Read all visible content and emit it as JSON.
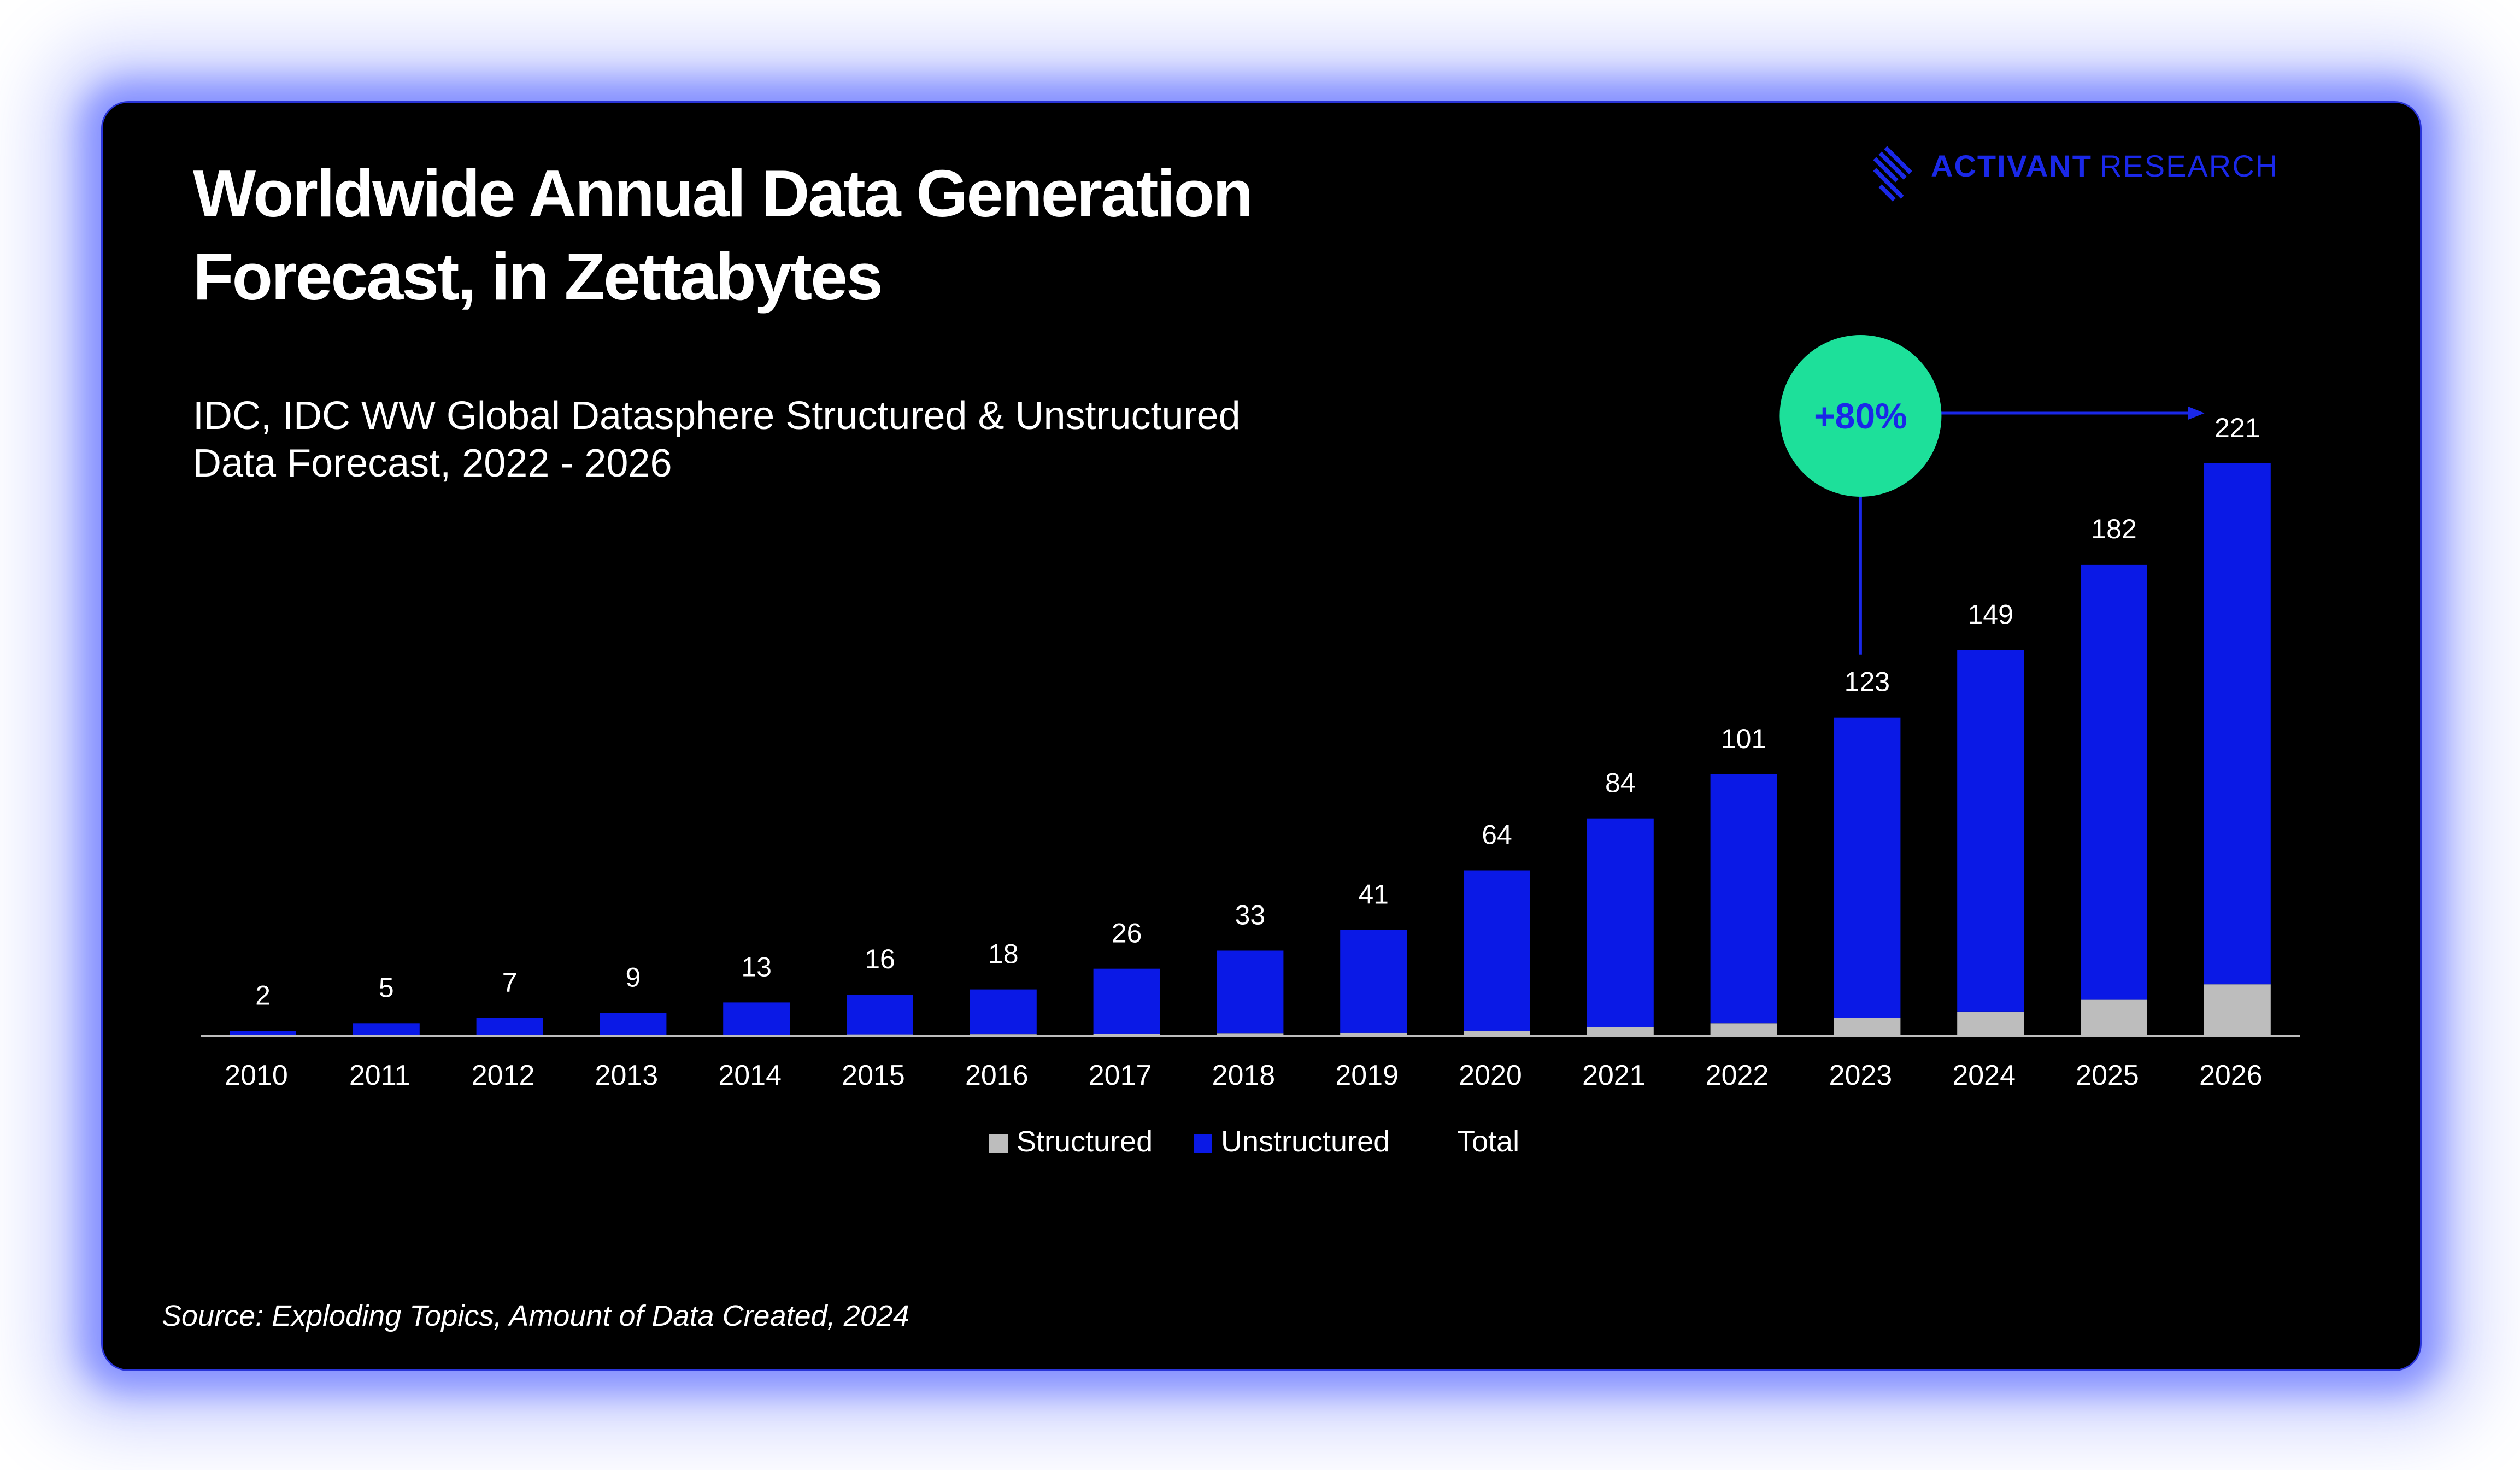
{
  "brand": {
    "name_bold": "ACTIVANT",
    "name_light": "RESEARCH",
    "logo_icon": "diagonal-stripes-icon"
  },
  "chart_data": {
    "type": "bar",
    "stacked": true,
    "title_lines": [
      "Worldwide Annual Data Generation",
      "Forecast, in Zettabytes"
    ],
    "subtitle_lines": [
      "IDC, IDC WW Global Datasphere Structured & Unstructured",
      "Data Forecast, 2022 - 2026"
    ],
    "categories": [
      "2010",
      "2011",
      "2012",
      "2013",
      "2014",
      "2015",
      "2016",
      "2017",
      "2018",
      "2019",
      "2020",
      "2021",
      "2022",
      "2023",
      "2024",
      "2025",
      "2026"
    ],
    "series": [
      {
        "name": "Structured",
        "color": "#bdbdbd",
        "values": [
          0.1,
          0.2,
          0.3,
          0.3,
          0.4,
          0.5,
          0.6,
          0.8,
          1.0,
          1.3,
          2.0,
          3.4,
          5.0,
          7.0,
          9.5,
          14.0,
          20.0
        ]
      },
      {
        "name": "Unstructured",
        "color": "#0a19e6",
        "values": [
          1.9,
          4.8,
          6.7,
          8.7,
          12.6,
          15.5,
          17.4,
          25.2,
          32.0,
          39.7,
          62.0,
          80.6,
          96.0,
          116.0,
          139.5,
          168.0,
          201.0
        ]
      }
    ],
    "totals": [
      2,
      5,
      7,
      9,
      13,
      16,
      18,
      26,
      33,
      41,
      64,
      84,
      101,
      123,
      149,
      182,
      221
    ],
    "legend": [
      "Structured",
      "Unstructured",
      "Total"
    ],
    "legend_placement": "bottom-center",
    "xlabel": "",
    "ylabel": "",
    "ylim": [
      0,
      221
    ],
    "grid": false,
    "annotation": {
      "text": "+80%",
      "from": "2023",
      "to": "2026",
      "badge_color": "#1de09a",
      "arrow_color": "#1a28e8"
    },
    "source": "Source: Exploding Topics, Amount of Data Created, 2024"
  }
}
